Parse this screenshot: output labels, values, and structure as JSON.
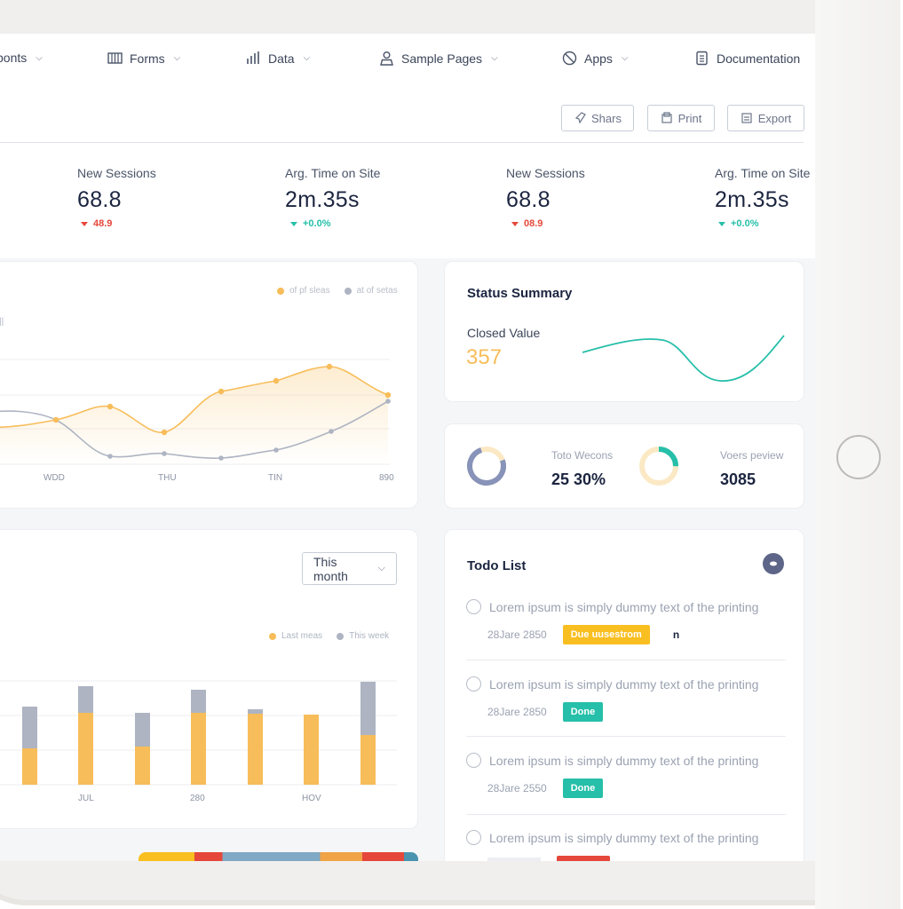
{
  "nav": {
    "items": [
      {
        "label": "ponts",
        "icon": "components-icon"
      },
      {
        "label": "Forms",
        "icon": "forms-icon"
      },
      {
        "label": "Data",
        "icon": "data-icon"
      },
      {
        "label": "Sample Pages",
        "icon": "user-icon"
      },
      {
        "label": "Apps",
        "icon": "apps-icon"
      },
      {
        "label": "Documentation",
        "icon": "document-icon"
      }
    ]
  },
  "toolbar": {
    "share_label": "Shars",
    "print_label": "Print",
    "export_label": "Export"
  },
  "stats": [
    {
      "label": "New Sessions",
      "value": "68.8",
      "delta": "48.9",
      "trend": "down"
    },
    {
      "label": "Arg. Time on Site",
      "value": "2m.35s",
      "delta": "+0.0%",
      "trend": "up"
    },
    {
      "label": "New Sessions",
      "value": "68.8",
      "delta": "08.9",
      "trend": "down"
    },
    {
      "label": "Arg. Time on Site",
      "value": "2m.35s",
      "delta": "+0.0%",
      "trend": "up"
    }
  ],
  "colors": {
    "orange": "#f7bd5a",
    "gray": "#aeb4c2",
    "teal": "#26bfa9",
    "red": "#e5473a",
    "yellow_badge": "#f9bf21",
    "navy": "#1c2540"
  },
  "line_chart": {
    "legend": [
      "of pf sleas",
      "at of setas"
    ],
    "x_labels": [
      "WDD",
      "THU",
      "TIN",
      "890"
    ],
    "corner_mark": "||"
  },
  "status_summary": {
    "title": "Status Summary",
    "closed_label": "Closed Value",
    "closed_value": "357"
  },
  "donuts": {
    "left": {
      "label": "Toto Wecons",
      "value": "25 30%"
    },
    "right": {
      "label": "Voers peview",
      "value": "3085"
    }
  },
  "bar_chart": {
    "select_value": "This month",
    "legend": [
      "Last meas",
      "This week"
    ],
    "x_labels": [
      "JUL",
      "280",
      "HOV"
    ]
  },
  "todo": {
    "title": "Todo List",
    "menu_icon": "more-icon",
    "items": [
      {
        "text": "Lorem ipsum is simply dummy text of the printing",
        "date": "28Jare 2850",
        "badge": "Due uusestrom",
        "badge_color": "#f9bf21",
        "extra": "n"
      },
      {
        "text": "Lorem ipsum is simply dummy text of the printing",
        "date": "28Jare 2850",
        "badge": "Done",
        "badge_color": "#26bfa9"
      },
      {
        "text": "Lorem ipsum is simply dummy text of the printing",
        "date": "28Jare 2550",
        "badge": "Done",
        "badge_color": "#26bfa9"
      },
      {
        "text": "Lorem ipsum is simply dummy text of the printing",
        "date": "",
        "badge": "",
        "badge_color": "#e5473a"
      }
    ]
  }
}
